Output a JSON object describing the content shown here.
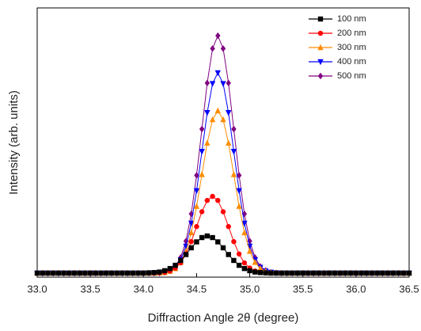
{
  "chart_data": {
    "type": "line",
    "x_label": "Diffraction Angle 2θ (degree)",
    "y_label": "Intensity (arb. units)",
    "xlim": [
      33,
      36.5
    ],
    "xticks": [
      {
        "value": 33,
        "label": "33.0"
      },
      33.5,
      {
        "value": 34,
        "label": "34.0"
      },
      34.5,
      {
        "value": 35,
        "label": "35.0"
      },
      35.5,
      {
        "value": 36,
        "label": "36.0"
      },
      36.5
    ],
    "ylim": [
      0,
      100
    ],
    "legend": "top-right",
    "x": [
      33,
      33.05,
      33.1,
      33.15,
      33.2,
      33.25,
      33.3,
      33.35,
      33.4,
      33.45,
      33.5,
      33.55,
      33.6,
      33.65,
      33.7,
      33.75,
      33.8,
      33.85,
      33.9,
      33.95,
      34,
      34.05,
      34.1,
      34.15,
      34.2,
      34.25,
      34.3,
      34.35,
      34.4,
      34.45,
      34.5,
      34.55,
      34.6,
      34.65,
      34.7,
      34.75,
      34.8,
      34.85,
      34.9,
      34.95,
      35,
      35.05,
      35.1,
      35.15,
      35.2,
      35.25,
      35.3,
      35.35,
      35.4,
      35.45,
      35.5,
      35.55,
      35.6,
      35.65,
      35.7,
      35.75,
      35.8,
      35.85,
      35.9,
      35.95,
      36,
      36.05,
      36.1,
      36.15,
      36.2,
      36.25,
      36.3,
      36.35,
      36.4,
      36.45,
      36.5
    ],
    "series": [
      {
        "name": "100 nm",
        "color": "#000000",
        "marker": "square",
        "values": [
          1.5,
          1.5,
          1.5,
          1.5,
          1.5,
          1.5,
          1.5,
          1.5,
          1.5,
          1.5,
          1.5,
          1.5,
          1.5,
          1.5,
          1.5,
          1.5,
          1.5,
          1.5,
          1.5,
          1.5,
          1.5,
          1.6,
          1.7,
          1.9,
          2.4,
          3.2,
          4.4,
          6.2,
          8.4,
          10.9,
          13.1,
          14.7,
          15.3,
          14.7,
          13.1,
          10.9,
          8.4,
          6.2,
          4.4,
          3.2,
          2.4,
          1.9,
          1.7,
          1.6,
          1.5,
          1.5,
          1.5,
          1.5,
          1.5,
          1.5,
          1.5,
          1.5,
          1.5,
          1.5,
          1.5,
          1.5,
          1.5,
          1.5,
          1.5,
          1.5,
          1.5,
          1.5,
          1.5,
          1.5,
          1.5,
          1.5,
          1.5,
          1.5,
          1.5,
          1.5,
          1.5
        ]
      },
      {
        "name": "200 nm",
        "color": "#ff0000",
        "marker": "circle",
        "values": [
          1.5,
          1.5,
          1.5,
          1.5,
          1.5,
          1.5,
          1.5,
          1.5,
          1.5,
          1.5,
          1.5,
          1.5,
          1.5,
          1.5,
          1.5,
          1.5,
          1.5,
          1.5,
          1.5,
          1.5,
          1.5,
          1.5,
          1.5,
          1.6,
          1.8,
          2.3,
          3.4,
          5.3,
          8.6,
          13.2,
          18.8,
          24.3,
          28.5,
          30.0,
          28.5,
          24.3,
          18.8,
          13.2,
          8.6,
          5.3,
          3.4,
          2.3,
          1.8,
          1.6,
          1.5,
          1.5,
          1.5,
          1.5,
          1.5,
          1.5,
          1.5,
          1.5,
          1.5,
          1.5,
          1.5,
          1.5,
          1.5,
          1.5,
          1.5,
          1.5,
          1.5,
          1.5,
          1.5,
          1.5,
          1.5,
          1.5,
          1.5,
          1.5,
          1.5,
          1.5,
          1.5
        ]
      },
      {
        "name": "300 nm",
        "color": "#ff8c00",
        "marker": "triangle-up",
        "values": [
          1.5,
          1.5,
          1.5,
          1.5,
          1.5,
          1.5,
          1.5,
          1.5,
          1.5,
          1.5,
          1.5,
          1.5,
          1.5,
          1.5,
          1.5,
          1.5,
          1.5,
          1.5,
          1.5,
          1.5,
          1.5,
          1.5,
          1.5,
          1.6,
          1.7,
          2.2,
          3.2,
          5.5,
          9.6,
          16.5,
          26.3,
          38.1,
          49.8,
          58.5,
          61.8,
          58.5,
          49.8,
          38.1,
          26.3,
          16.5,
          9.6,
          5.5,
          3.2,
          2.2,
          1.7,
          1.6,
          1.5,
          1.5,
          1.5,
          1.5,
          1.5,
          1.5,
          1.5,
          1.5,
          1.5,
          1.5,
          1.5,
          1.5,
          1.5,
          1.5,
          1.5,
          1.5,
          1.5,
          1.5,
          1.5,
          1.5,
          1.5,
          1.5,
          1.5,
          1.5,
          1.5
        ]
      },
      {
        "name": "400 nm",
        "color": "#0000ff",
        "marker": "triangle-down",
        "values": [
          1.5,
          1.5,
          1.5,
          1.5,
          1.5,
          1.5,
          1.5,
          1.5,
          1.5,
          1.5,
          1.5,
          1.5,
          1.5,
          1.5,
          1.5,
          1.5,
          1.5,
          1.5,
          1.5,
          1.5,
          1.5,
          1.5,
          1.5,
          1.6,
          1.8,
          2.3,
          3.6,
          6.4,
          11.5,
          20.0,
          32.1,
          46.7,
          61.1,
          71.9,
          75.9,
          71.9,
          61.1,
          46.7,
          32.1,
          20.0,
          11.5,
          6.4,
          3.6,
          2.3,
          1.8,
          1.6,
          1.5,
          1.5,
          1.5,
          1.5,
          1.5,
          1.5,
          1.5,
          1.5,
          1.5,
          1.5,
          1.5,
          1.5,
          1.5,
          1.5,
          1.5,
          1.5,
          1.5,
          1.5,
          1.5,
          1.5,
          1.5,
          1.5,
          1.5,
          1.5,
          1.5
        ]
      },
      {
        "name": "500 nm",
        "color": "#800080",
        "marker": "diamond",
        "values": [
          1.5,
          1.5,
          1.5,
          1.5,
          1.5,
          1.5,
          1.5,
          1.5,
          1.5,
          1.5,
          1.5,
          1.5,
          1.5,
          1.5,
          1.5,
          1.5,
          1.5,
          1.5,
          1.5,
          1.5,
          1.5,
          1.5,
          1.5,
          1.6,
          1.8,
          2.5,
          4.0,
          7.3,
          13.4,
          23.5,
          37.8,
          55.0,
          72.1,
          84.9,
          89.7,
          84.9,
          72.1,
          55.0,
          37.8,
          23.5,
          13.4,
          7.3,
          4.0,
          2.5,
          1.8,
          1.6,
          1.5,
          1.5,
          1.5,
          1.5,
          1.5,
          1.5,
          1.5,
          1.5,
          1.5,
          1.5,
          1.5,
          1.5,
          1.5,
          1.5,
          1.5,
          1.5,
          1.5,
          1.5,
          1.5,
          1.5,
          1.5,
          1.5,
          1.5,
          1.5,
          1.5
        ]
      }
    ]
  }
}
